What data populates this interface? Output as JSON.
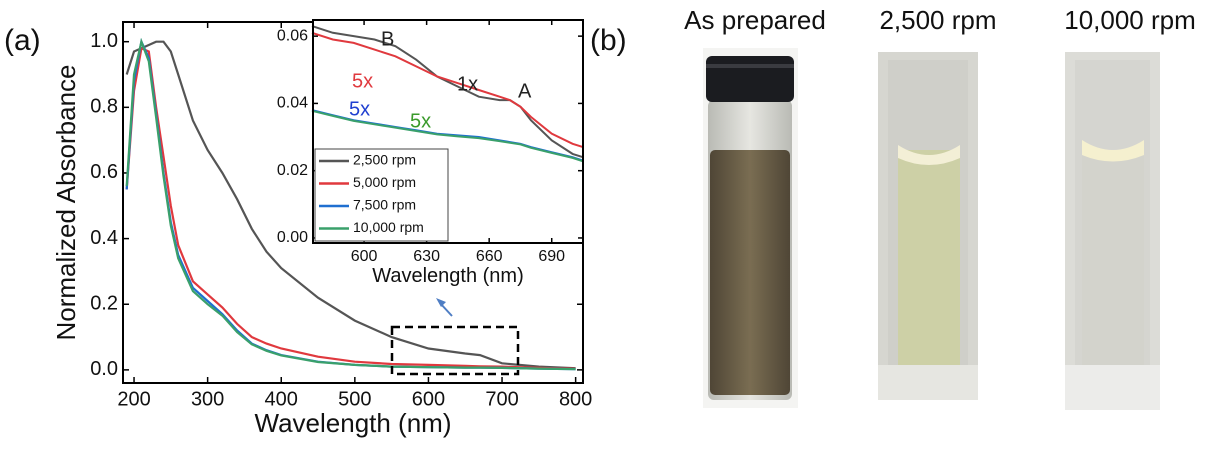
{
  "panel_labels": [
    "(a)",
    "(b)"
  ],
  "chart_data": [
    {
      "type": "line",
      "xlabel": "Wavelength (nm)",
      "ylabel": "Normalized Absorbance",
      "x": [
        190,
        200,
        210,
        220,
        230,
        240,
        250,
        260,
        280,
        300,
        320,
        340,
        360,
        380,
        400,
        450,
        500,
        550,
        600,
        650,
        670,
        700,
        750,
        800
      ],
      "series": [
        {
          "name": "2,500 rpm",
          "color": "#555555",
          "values": [
            0.9,
            0.97,
            0.98,
            0.99,
            1.0,
            1.0,
            0.97,
            0.9,
            0.76,
            0.67,
            0.6,
            0.52,
            0.43,
            0.36,
            0.31,
            0.22,
            0.15,
            0.1,
            0.065,
            0.05,
            0.045,
            0.02,
            0.01,
            0.005
          ]
        },
        {
          "name": "5,000 rpm",
          "color": "#e0393e",
          "values": [
            0.55,
            0.85,
            0.98,
            0.97,
            0.8,
            0.65,
            0.5,
            0.38,
            0.27,
            0.23,
            0.19,
            0.14,
            0.1,
            0.08,
            0.065,
            0.04,
            0.025,
            0.018,
            0.015,
            0.012,
            0.011,
            0.01,
            0.006,
            0.003
          ]
        },
        {
          "name": "7,500 rpm",
          "color": "#1f6fd0",
          "values": [
            0.55,
            0.88,
            1.0,
            0.95,
            0.78,
            0.6,
            0.45,
            0.35,
            0.25,
            0.21,
            0.17,
            0.12,
            0.08,
            0.06,
            0.045,
            0.025,
            0.015,
            0.01,
            0.008,
            0.007,
            0.007,
            0.006,
            0.004,
            0.002
          ]
        },
        {
          "name": "10,000 rpm",
          "color": "#3aa06b",
          "values": [
            0.56,
            0.9,
            1.0,
            0.94,
            0.77,
            0.59,
            0.44,
            0.34,
            0.24,
            0.2,
            0.165,
            0.115,
            0.078,
            0.058,
            0.044,
            0.024,
            0.015,
            0.01,
            0.008,
            0.007,
            0.007,
            0.006,
            0.004,
            0.002
          ]
        }
      ],
      "xlim": [
        185,
        810
      ],
      "ylim": [
        -0.04,
        1.06
      ],
      "xticks": [
        200,
        300,
        400,
        500,
        600,
        700,
        800
      ],
      "yticks": [
        {
          "value": 0,
          "label": "0.0"
        },
        0.2,
        0.4,
        0.6,
        0.8,
        {
          "value": 1,
          "label": "1.0"
        }
      ]
    },
    {
      "type": "line",
      "xlabel": "Wavelength (nm)",
      "x": [
        575,
        585,
        595,
        605,
        615,
        625,
        635,
        645,
        655,
        665,
        670,
        675,
        680,
        690,
        700,
        705
      ],
      "series": [
        {
          "name": "2,500 rpm",
          "color": "#555555",
          "values": [
            0.063,
            0.061,
            0.06,
            0.059,
            0.057,
            0.053,
            0.048,
            0.045,
            0.042,
            0.041,
            0.041,
            0.039,
            0.035,
            0.029,
            0.025,
            0.024
          ]
        },
        {
          "name": "5,000 rpm",
          "color": "#e0393e",
          "values": [
            0.061,
            0.059,
            0.058,
            0.056,
            0.054,
            0.051,
            0.048,
            0.046,
            0.044,
            0.042,
            0.041,
            0.039,
            0.036,
            0.031,
            0.028,
            0.027
          ]
        },
        {
          "name": "7,500 rpm",
          "color": "#1f6fd0",
          "values": [
            0.038,
            0.0365,
            0.035,
            0.034,
            0.033,
            0.032,
            0.031,
            0.0305,
            0.03,
            0.029,
            0.0285,
            0.028,
            0.027,
            0.0255,
            0.024,
            0.023
          ]
        },
        {
          "name": "10,000 rpm",
          "color": "#3aa06b",
          "values": [
            0.0378,
            0.0363,
            0.0348,
            0.0338,
            0.0328,
            0.0318,
            0.0308,
            0.0302,
            0.0297,
            0.0288,
            0.0283,
            0.0278,
            0.0268,
            0.0253,
            0.0238,
            0.0228
          ]
        }
      ],
      "annotations": [
        {
          "text": "B",
          "color": "#222222"
        },
        {
          "text": "1x",
          "color": "#222222"
        },
        {
          "text": "A",
          "color": "#222222"
        },
        {
          "text": "5x",
          "color": "#e0393e"
        },
        {
          "text": "5x",
          "color": "#1f3fd0"
        },
        {
          "text": "5x",
          "color": "#3a9a2b"
        }
      ],
      "xlim": [
        575.5,
        705
      ],
      "ylim": [
        -0.0015,
        0.0648
      ],
      "xticks": [
        600,
        630,
        660,
        690
      ],
      "yticks": [
        {
          "value": 0,
          "label": "0.00"
        },
        {
          "value": 0.02,
          "label": "0.02"
        },
        {
          "value": 0.04,
          "label": "0.04"
        },
        {
          "value": 0.06,
          "label": "0.06"
        }
      ],
      "legend": "lower left"
    }
  ],
  "photos": {
    "labels": [
      "As prepared",
      "2,500 rpm",
      "10,000 rpm"
    ]
  }
}
